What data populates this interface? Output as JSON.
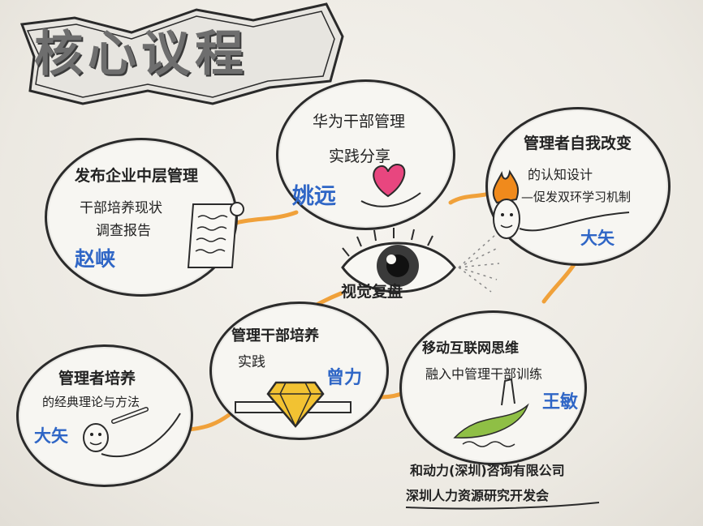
{
  "title": "核心议程",
  "center": {
    "label": "视觉复盘"
  },
  "bubbles": [
    {
      "lines": [
        "发布企业中层管理",
        "干部培养现状",
        "调查报告"
      ],
      "speaker": "赵峡"
    },
    {
      "lines": [
        "华为干部管理",
        "实践分享"
      ],
      "speaker": "姚远"
    },
    {
      "lines": [
        "管理者自我改变",
        "的认知设计",
        "—促发双环学习机制"
      ],
      "speaker": "大矢"
    },
    {
      "lines": [
        "管理者培养",
        "的经典理论与方法"
      ],
      "speaker": "大矢"
    },
    {
      "lines": [
        "管理干部培养",
        "实践"
      ],
      "speaker": "曾力"
    },
    {
      "lines": [
        "移动互联网思维",
        "融入中管理干部训练"
      ],
      "speaker": "王敏"
    }
  ],
  "organizers": [
    "和动力(深圳)咨询有限公司",
    "深圳人力资源研究开发会"
  ],
  "colors": {
    "connector": "#f0a13a",
    "name": "#2f66c6",
    "heart": "#e8467f",
    "diamond": "#f2c232",
    "flame": "#f08a1c",
    "leaf": "#8fbf45"
  }
}
